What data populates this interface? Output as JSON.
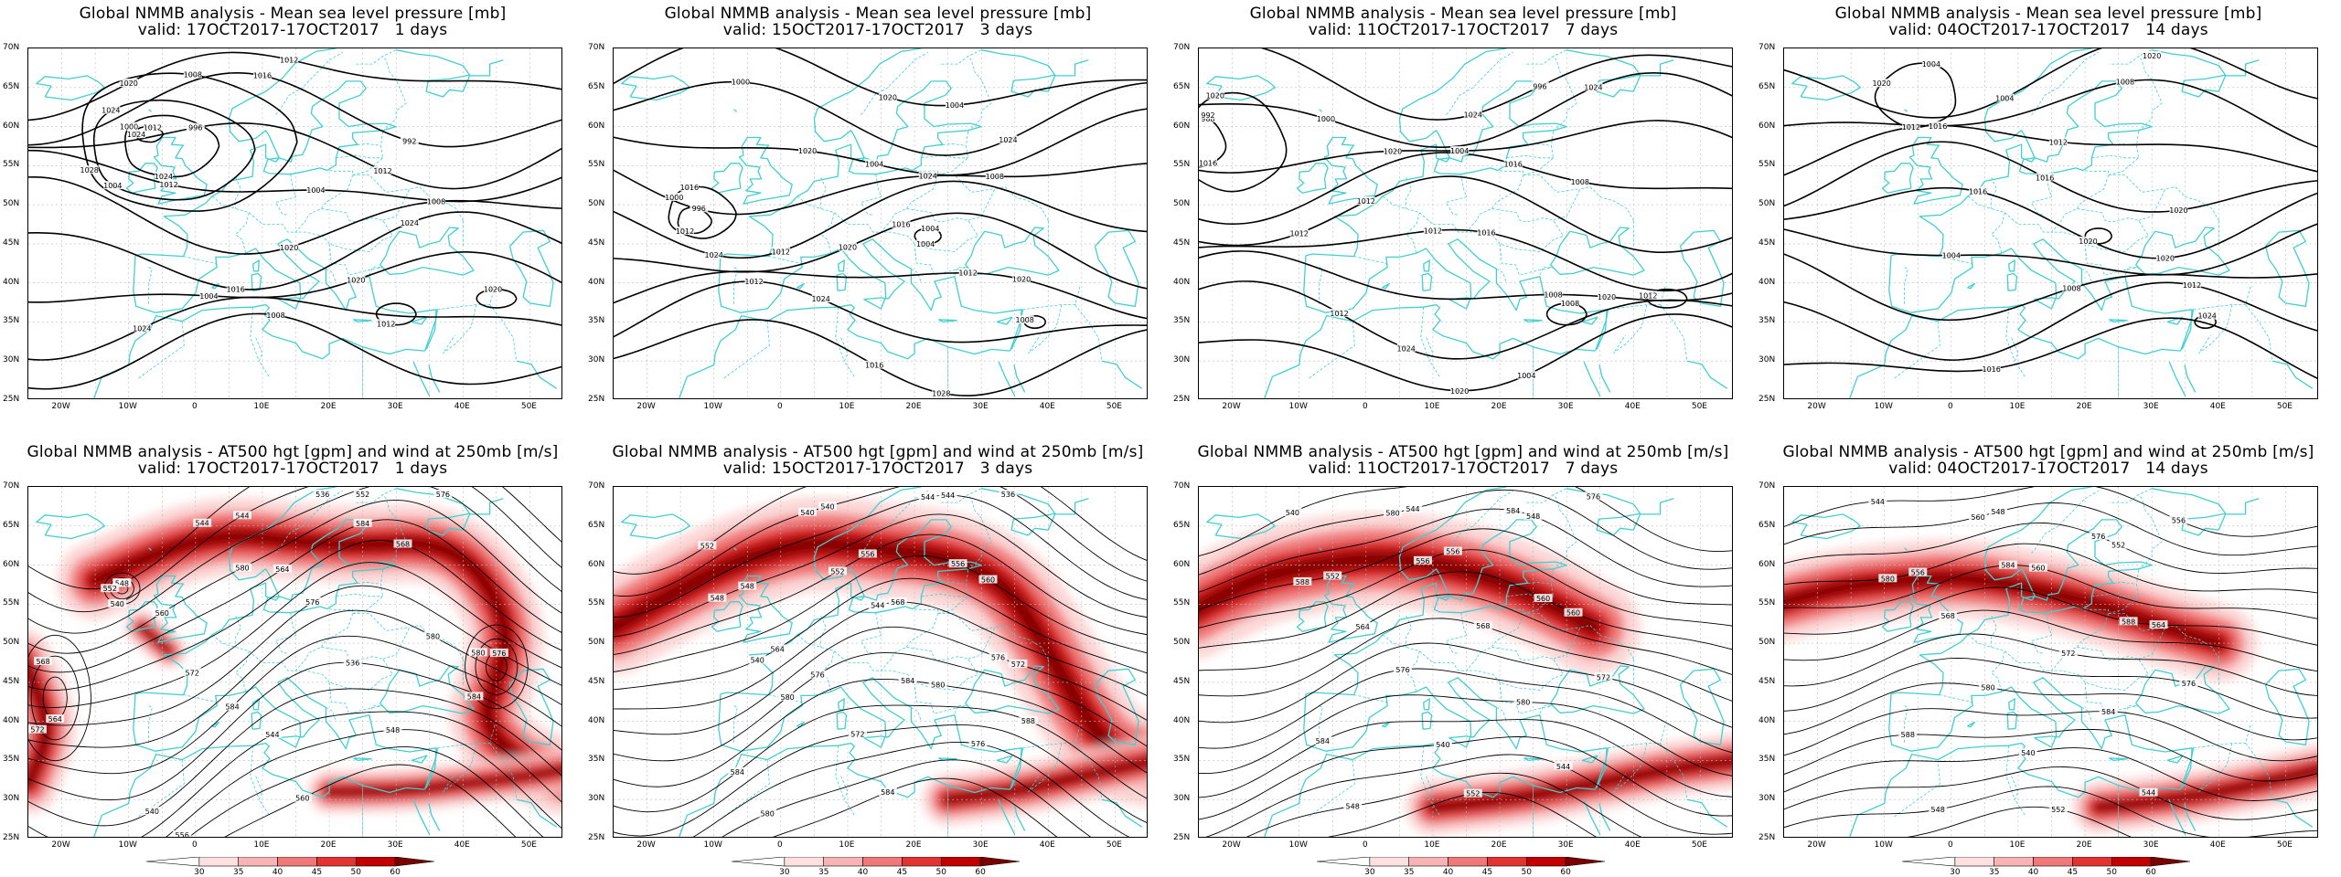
{
  "panels": [
    {
      "title_line1": "Global NMMB analysis - Mean sea level pressure [mb]",
      "title_line2": "valid: 17OCT2017-17OCT2017   1 days",
      "field": "mslp",
      "contour_labels": [
        "1012",
        "1000",
        "1004",
        "1008",
        "1012",
        "992",
        "996",
        "1004",
        "1008",
        "1016",
        "1020",
        "1024",
        "1008",
        "1012",
        "1020",
        "1024",
        "1024",
        "1024",
        "1028",
        "1020",
        "1016",
        "1012",
        "1012",
        "1020",
        "1024",
        "1004"
      ],
      "legend": null
    },
    {
      "title_line1": "Global NMMB analysis - Mean sea level pressure [mb]",
      "title_line2": "valid: 15OCT2017-17OCT2017   3 days",
      "field": "mslp",
      "contour_labels": [
        "996",
        "1000",
        "1004",
        "1000",
        "1004",
        "1008",
        "1012",
        "1016",
        "1020",
        "1024",
        "1028",
        "1004",
        "1008",
        "1012",
        "1016",
        "1020",
        "1024",
        "1020",
        "1024",
        "1024",
        "1020",
        "1012",
        "1012",
        "1016",
        "1004"
      ],
      "legend": null
    },
    {
      "title_line1": "Global NMMB analysis - Mean sea level pressure [mb]",
      "title_line2": "valid: 11OCT2017-17OCT2017   7 days",
      "field": "mslp",
      "contour_labels": [
        "988",
        "992",
        "996",
        "1000",
        "1004",
        "1008",
        "1012",
        "1016",
        "1020",
        "1024",
        "1004",
        "1008",
        "1012",
        "1016",
        "1020",
        "1024",
        "1024",
        "1020",
        "1016",
        "1012",
        "1012",
        "1008",
        "1012",
        "1020"
      ],
      "legend": null
    },
    {
      "title_line1": "Global NMMB analysis - Mean sea level pressure [mb]",
      "title_line2": "valid: 04OCT2017-17OCT2017   14 days",
      "field": "mslp",
      "contour_labels": [
        "1004",
        "1004",
        "1008",
        "1012",
        "1016",
        "1020",
        "1004",
        "1008",
        "1012",
        "1016",
        "1020",
        "1024",
        "1020",
        "1020",
        "1016",
        "1012",
        "1020",
        "1016"
      ],
      "legend": null
    },
    {
      "title_line1": "Global NMMB analysis - AT500 hgt [gpm] and wind at 250mb [m/s]",
      "title_line2": "valid: 17OCT2017-17OCT2017   1 days",
      "field": "z500",
      "contour_labels": [
        "540",
        "544",
        "552",
        "560",
        "564",
        "568",
        "572",
        "576",
        "580",
        "584",
        "536",
        "540",
        "544",
        "548",
        "556",
        "560",
        "564",
        "568",
        "572",
        "576",
        "580",
        "584",
        "548",
        "552",
        "540",
        "544",
        "536",
        "576",
        "580",
        "584"
      ],
      "legend": {
        "values": [
          "30",
          "35",
          "40",
          "45",
          "50",
          "60"
        ],
        "colors": [
          "#ffffff",
          "#fde0e0",
          "#f8b4b4",
          "#f07878",
          "#e33232",
          "#c30000",
          "#7a0000"
        ]
      }
    },
    {
      "title_line1": "Global NMMB analysis - AT500 hgt [gpm] and wind at 250mb [m/s]",
      "title_line2": "valid: 15OCT2017-17OCT2017   3 days",
      "field": "z500",
      "contour_labels": [
        "552",
        "540",
        "544",
        "548",
        "556",
        "560",
        "564",
        "568",
        "572",
        "576",
        "580",
        "584",
        "572",
        "576",
        "580",
        "584",
        "536",
        "540",
        "544",
        "548",
        "552",
        "556",
        "540",
        "544",
        "576",
        "580",
        "584",
        "588"
      ],
      "legend": {
        "values": [
          "30",
          "35",
          "40",
          "45",
          "50",
          "60"
        ],
        "colors": [
          "#ffffff",
          "#fde0e0",
          "#f8b4b4",
          "#f07878",
          "#e33232",
          "#c30000",
          "#7a0000"
        ]
      }
    },
    {
      "title_line1": "Global NMMB analysis - AT500 hgt [gpm] and wind at 250mb [m/s]",
      "title_line2": "valid: 11OCT2017-17OCT2017   7 days",
      "field": "z500",
      "contour_labels": [
        "540",
        "544",
        "548",
        "552",
        "556",
        "560",
        "564",
        "568",
        "572",
        "576",
        "580",
        "584",
        "540",
        "544",
        "548",
        "552",
        "576",
        "580",
        "584",
        "588",
        "556",
        "560"
      ],
      "legend": {
        "values": [
          "30",
          "35",
          "40",
          "45",
          "50",
          "60"
        ],
        "colors": [
          "#ffffff",
          "#fde0e0",
          "#f8b4b4",
          "#f07878",
          "#e33232",
          "#c30000",
          "#7a0000"
        ]
      }
    },
    {
      "title_line1": "Global NMMB analysis - AT500 hgt [gpm] and wind at 250mb [m/s]",
      "title_line2": "valid: 04OCT2017-17OCT2017   14 days",
      "field": "z500",
      "contour_labels": [
        "544",
        "548",
        "552",
        "556",
        "560",
        "564",
        "568",
        "572",
        "576",
        "580",
        "584",
        "588",
        "540",
        "544",
        "548",
        "552",
        "556",
        "560",
        "576",
        "580",
        "584",
        "588"
      ],
      "legend": {
        "values": [
          "30",
          "35",
          "40",
          "45",
          "50",
          "60"
        ],
        "colors": [
          "#ffffff",
          "#fde0e0",
          "#f8b4b4",
          "#f07878",
          "#e33232",
          "#c30000",
          "#7a0000"
        ]
      }
    }
  ],
  "axes": {
    "lat_labels": [
      "70N",
      "65N",
      "60N",
      "55N",
      "50N",
      "45N",
      "40N",
      "35N",
      "30N",
      "25N"
    ],
    "lon_labels": [
      "20W",
      "10W",
      "0",
      "10E",
      "20E",
      "30E",
      "40E",
      "50E"
    ]
  },
  "colors": {
    "coast": "#40d0d0",
    "contour": "#000000",
    "grid": "#bbbbbb",
    "wind_light": "#fbd0d0",
    "wind_mid": "#f07070",
    "wind_strong": "#d41010",
    "wind_max": "#7a0000"
  }
}
